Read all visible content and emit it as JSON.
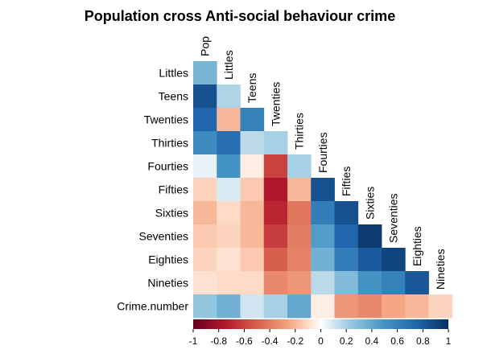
{
  "chart_data": {
    "type": "heatmap",
    "title": "Population cross Anti-social behaviour crime",
    "variables": [
      "Pop",
      "Littles",
      "Teens",
      "Twenties",
      "Thirties",
      "Fourties",
      "Fifties",
      "Sixties",
      "Seventies",
      "Eighties",
      "Nineties",
      "Crime.number"
    ],
    "layout": "lower-triangle",
    "rows": [
      {
        "label": "Littles",
        "values": [
          0.33
        ]
      },
      {
        "label": "Teens",
        "values": [
          0.85,
          0.18
        ]
      },
      {
        "label": "Twenties",
        "values": [
          0.75,
          -0.2,
          0.6
        ]
      },
      {
        "label": "Thirties",
        "values": [
          0.55,
          0.7,
          0.15,
          0.2
        ]
      },
      {
        "label": "Fourties",
        "values": [
          0.05,
          0.5,
          -0.05,
          -0.6,
          0.2
        ]
      },
      {
        "label": "Fifties",
        "values": [
          -0.12,
          0.08,
          -0.15,
          -0.75,
          -0.2,
          0.85
        ]
      },
      {
        "label": "Sixties",
        "values": [
          -0.2,
          -0.1,
          -0.2,
          -0.7,
          -0.42,
          0.62,
          0.85
        ]
      },
      {
        "label": "Seventies",
        "values": [
          -0.15,
          -0.12,
          -0.2,
          -0.62,
          -0.4,
          0.45,
          0.75,
          0.95
        ]
      },
      {
        "label": "Eighties",
        "values": [
          -0.12,
          -0.08,
          -0.15,
          -0.5,
          -0.38,
          0.35,
          0.62,
          0.8,
          0.9
        ]
      },
      {
        "label": "Nineties",
        "values": [
          -0.08,
          -0.1,
          -0.1,
          -0.35,
          -0.3,
          0.15,
          0.3,
          0.5,
          0.6,
          0.82
        ]
      },
      {
        "label": "Crime.number",
        "values": [
          0.25,
          0.35,
          0.1,
          0.2,
          0.4,
          -0.05,
          -0.3,
          -0.35,
          -0.25,
          -0.2,
          -0.12
        ]
      }
    ],
    "color_scale": {
      "min": -1,
      "max": 1,
      "ticks": [
        -1,
        -0.8,
        -0.6,
        -0.4,
        -0.2,
        0,
        0.2,
        0.4,
        0.6,
        0.8,
        1
      ],
      "tick_labels": [
        "-1",
        "-0.8",
        "-0.6",
        "-0.4",
        "-0.2",
        "0",
        "0.2",
        "0.4",
        "0.6",
        "0.8",
        "1"
      ],
      "stops": [
        [
          -1,
          "#67001f"
        ],
        [
          -0.75,
          "#b2182b"
        ],
        [
          -0.5,
          "#d6604d"
        ],
        [
          -0.25,
          "#f4a582"
        ],
        [
          -0.1,
          "#fddbc7"
        ],
        [
          0,
          "#ffffff"
        ],
        [
          0.1,
          "#d1e5f0"
        ],
        [
          0.25,
          "#92c5de"
        ],
        [
          0.5,
          "#4393c3"
        ],
        [
          0.75,
          "#2166ac"
        ],
        [
          1,
          "#053061"
        ]
      ]
    },
    "legend_placement": "bottom"
  }
}
